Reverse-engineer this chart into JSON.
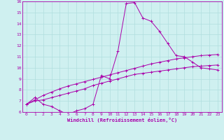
{
  "xlabel": "Windchill (Refroidissement éolien,°C)",
  "xlim": [
    -0.5,
    23.5
  ],
  "ylim": [
    6,
    16
  ],
  "xticks": [
    0,
    1,
    2,
    3,
    4,
    5,
    6,
    7,
    8,
    9,
    10,
    11,
    12,
    13,
    14,
    15,
    16,
    17,
    18,
    19,
    20,
    21,
    22,
    23
  ],
  "yticks": [
    6,
    7,
    8,
    9,
    10,
    11,
    12,
    13,
    14,
    15,
    16
  ],
  "bg_color": "#cff0f0",
  "line_color": "#aa00aa",
  "grid_color": "#b0dede",
  "lines": [
    [
      6.7,
      7.3,
      6.7,
      6.5,
      6.1,
      5.8,
      6.1,
      6.3,
      6.7,
      9.3,
      9.0,
      11.5,
      15.8,
      15.9,
      14.5,
      14.2,
      13.3,
      12.2,
      11.1,
      11.0,
      10.5,
      10.0,
      9.9,
      9.8
    ],
    [
      6.7,
      7.0,
      7.1,
      7.3,
      7.5,
      7.7,
      7.9,
      8.1,
      8.4,
      8.6,
      8.8,
      9.0,
      9.2,
      9.4,
      9.5,
      9.6,
      9.7,
      9.8,
      9.9,
      10.0,
      10.1,
      10.15,
      10.2,
      10.25
    ],
    [
      6.7,
      7.1,
      7.5,
      7.8,
      8.1,
      8.35,
      8.55,
      8.75,
      8.95,
      9.15,
      9.35,
      9.55,
      9.75,
      9.95,
      10.15,
      10.35,
      10.5,
      10.65,
      10.8,
      10.9,
      11.0,
      11.1,
      11.15,
      11.2
    ]
  ]
}
